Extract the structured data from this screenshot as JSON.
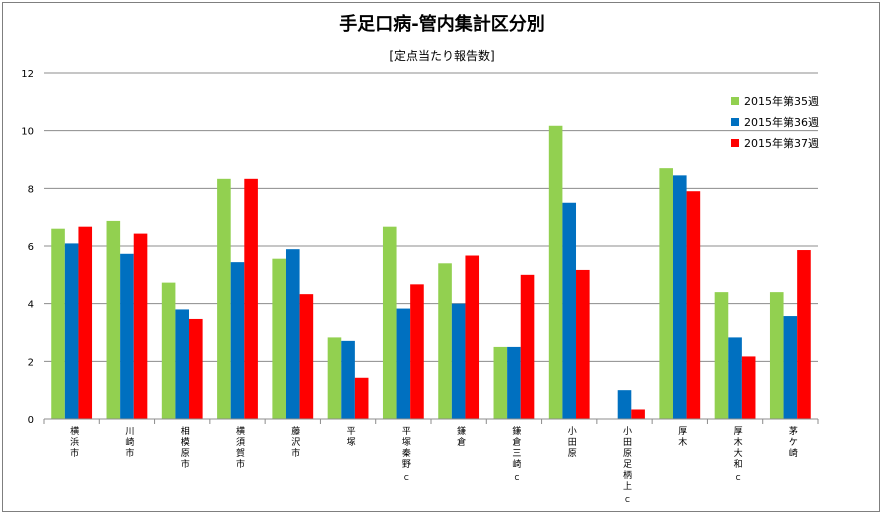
{
  "chart_data": {
    "type": "bar",
    "title": "手足口病-管内集計区分別",
    "subtitle": "[定点当たり報告数]",
    "xlabel": "",
    "ylabel": "",
    "ylim": [
      0,
      12
    ],
    "yticks": [
      0,
      2,
      4,
      6,
      8,
      10,
      12
    ],
    "grid": true,
    "legend_position": "right",
    "categories": [
      {
        "main": "横浜市",
        "sub": ""
      },
      {
        "main": "川崎市",
        "sub": ""
      },
      {
        "main": "相模原市",
        "sub": ""
      },
      {
        "main": "横須賀市",
        "sub": ""
      },
      {
        "main": "藤沢市",
        "sub": ""
      },
      {
        "main": "平塚",
        "sub": ""
      },
      {
        "main": "平塚秦野",
        "sub": "C"
      },
      {
        "main": "鎌倉",
        "sub": ""
      },
      {
        "main": "鎌倉三崎",
        "sub": "C"
      },
      {
        "main": "小田原",
        "sub": ""
      },
      {
        "main": "小田原足柄上",
        "sub": "C"
      },
      {
        "main": "厚木",
        "sub": ""
      },
      {
        "main": "厚木大和",
        "sub": "C"
      },
      {
        "main": "茅ケ崎",
        "sub": ""
      }
    ],
    "series": [
      {
        "name": "2015年第35週",
        "color": "#92d050",
        "values": [
          6.6,
          6.87,
          4.73,
          8.33,
          5.56,
          2.83,
          6.67,
          5.4,
          2.5,
          10.17,
          0,
          8.7,
          4.4,
          4.4
        ]
      },
      {
        "name": "2015年第36週",
        "color": "#0070c0",
        "values": [
          6.09,
          5.73,
          3.8,
          5.44,
          5.89,
          2.71,
          3.83,
          4.0,
          2.5,
          7.5,
          1.0,
          8.45,
          2.83,
          3.57
        ]
      },
      {
        "name": "2015年第37週",
        "color": "#ff0000",
        "values": [
          6.67,
          6.43,
          3.47,
          8.33,
          4.33,
          1.43,
          4.67,
          5.67,
          5.0,
          5.17,
          0.33,
          7.9,
          2.17,
          5.86
        ]
      }
    ]
  }
}
